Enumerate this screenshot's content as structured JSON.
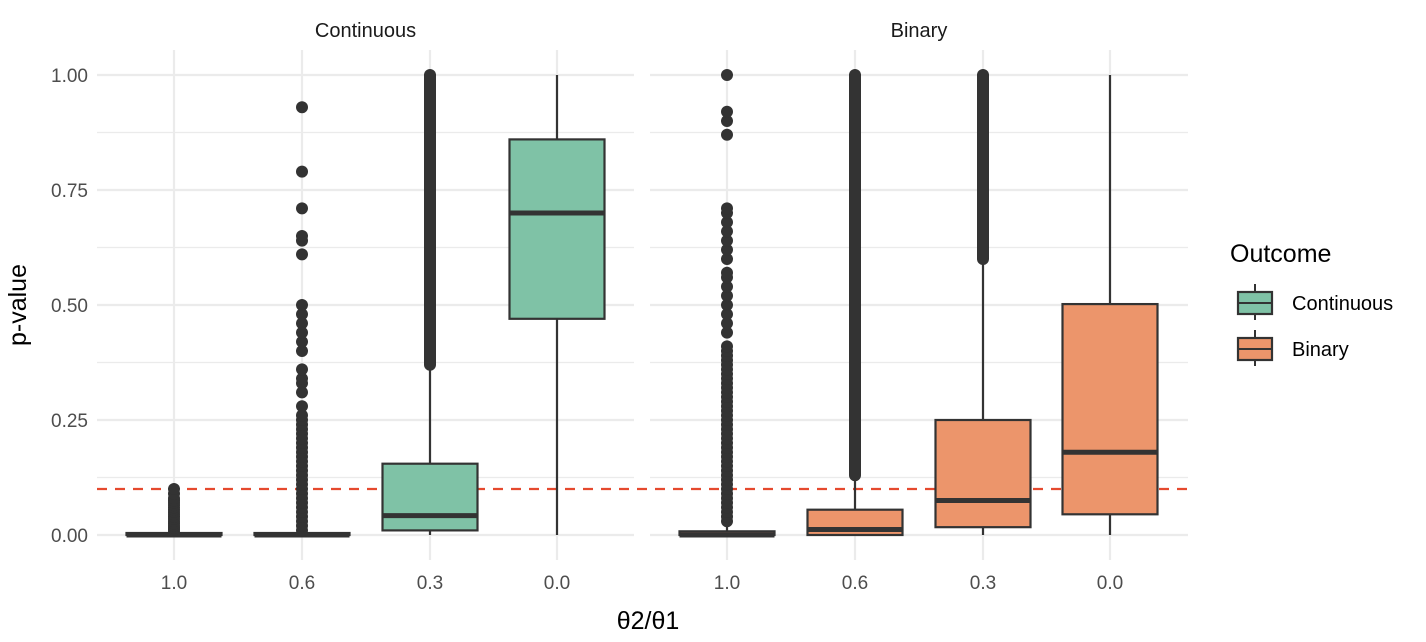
{
  "chart_data": {
    "type": "boxplot",
    "facets": [
      "Continuous",
      "Binary"
    ],
    "categories": [
      "1.0",
      "0.6",
      "0.3",
      "0.0"
    ],
    "ylabel": "p-value",
    "xlabel": "θ2/θ1",
    "yticks": [
      "0.00",
      "0.25",
      "0.50",
      "0.75",
      "1.00"
    ],
    "ylim": [
      -0.05,
      1.05
    ],
    "reference_line": {
      "y": 0.1,
      "style": "dashed",
      "color": "#e5492e"
    },
    "legend": {
      "title": "Outcome",
      "position": "right",
      "items": [
        {
          "label": "Continuous",
          "color": "#7fc2a6"
        },
        {
          "label": "Binary",
          "color": "#ec956b"
        }
      ]
    },
    "boxes": [
      {
        "facet": "Continuous",
        "category": "1.0",
        "q1": 0.0,
        "median": 0.0,
        "q3": 0.002,
        "whisker_low": 0.0,
        "whisker_high": 0.005,
        "outliers": [
          0.008,
          0.012,
          0.016,
          0.02,
          0.025,
          0.03,
          0.035,
          0.04,
          0.045,
          0.05,
          0.055,
          0.06,
          0.065,
          0.07,
          0.075,
          0.08,
          0.09,
          0.1
        ]
      },
      {
        "facet": "Continuous",
        "category": "0.6",
        "q1": 0.0,
        "median": 0.0,
        "q3": 0.002,
        "whisker_low": 0.0,
        "whisker_high": 0.005,
        "outliers": [
          0.01,
          0.02,
          0.03,
          0.04,
          0.05,
          0.06,
          0.07,
          0.08,
          0.09,
          0.1,
          0.11,
          0.12,
          0.13,
          0.14,
          0.15,
          0.16,
          0.17,
          0.18,
          0.19,
          0.2,
          0.21,
          0.22,
          0.23,
          0.24,
          0.25,
          0.26,
          0.28,
          0.31,
          0.33,
          0.34,
          0.36,
          0.4,
          0.42,
          0.44,
          0.46,
          0.48,
          0.5,
          0.61,
          0.64,
          0.65,
          0.71,
          0.79,
          0.93
        ]
      },
      {
        "facet": "Continuous",
        "category": "0.3",
        "q1": 0.01,
        "median": 0.042,
        "q3": 0.155,
        "whisker_low": 0.0,
        "whisker_high": 0.37,
        "outliers_dense_range": [
          0.37,
          1.0
        ]
      },
      {
        "facet": "Continuous",
        "category": "0.0",
        "q1": 0.47,
        "median": 0.7,
        "q3": 0.86,
        "whisker_low": 0.0,
        "whisker_high": 1.0
      },
      {
        "facet": "Binary",
        "category": "1.0",
        "q1": 0.0,
        "median": 0.0,
        "q3": 0.008,
        "whisker_low": 0.0,
        "whisker_high": 0.02,
        "outliers": [
          0.03,
          0.04,
          0.05,
          0.06,
          0.07,
          0.08,
          0.09,
          0.1,
          0.11,
          0.12,
          0.13,
          0.14,
          0.15,
          0.16,
          0.17,
          0.18,
          0.19,
          0.2,
          0.21,
          0.22,
          0.23,
          0.24,
          0.25,
          0.26,
          0.27,
          0.28,
          0.29,
          0.3,
          0.31,
          0.32,
          0.33,
          0.34,
          0.35,
          0.36,
          0.37,
          0.38,
          0.39,
          0.4,
          0.41,
          0.44,
          0.46,
          0.48,
          0.5,
          0.52,
          0.54,
          0.56,
          0.57,
          0.6,
          0.62,
          0.64,
          0.66,
          0.68,
          0.7,
          0.71,
          0.87,
          0.9,
          0.92,
          1.0
        ]
      },
      {
        "facet": "Binary",
        "category": "0.6",
        "q1": 0.0,
        "median": 0.012,
        "q3": 0.055,
        "whisker_low": 0.0,
        "whisker_high": 0.13,
        "outliers_dense_range": [
          0.13,
          1.0
        ]
      },
      {
        "facet": "Binary",
        "category": "0.3",
        "q1": 0.017,
        "median": 0.075,
        "q3": 0.25,
        "whisker_low": 0.0,
        "whisker_high": 0.6,
        "outliers_dense_range": [
          0.6,
          1.0
        ]
      },
      {
        "facet": "Binary",
        "category": "0.0",
        "q1": 0.045,
        "median": 0.18,
        "q3": 0.502,
        "whisker_low": 0.0,
        "whisker_high": 1.0
      }
    ]
  }
}
